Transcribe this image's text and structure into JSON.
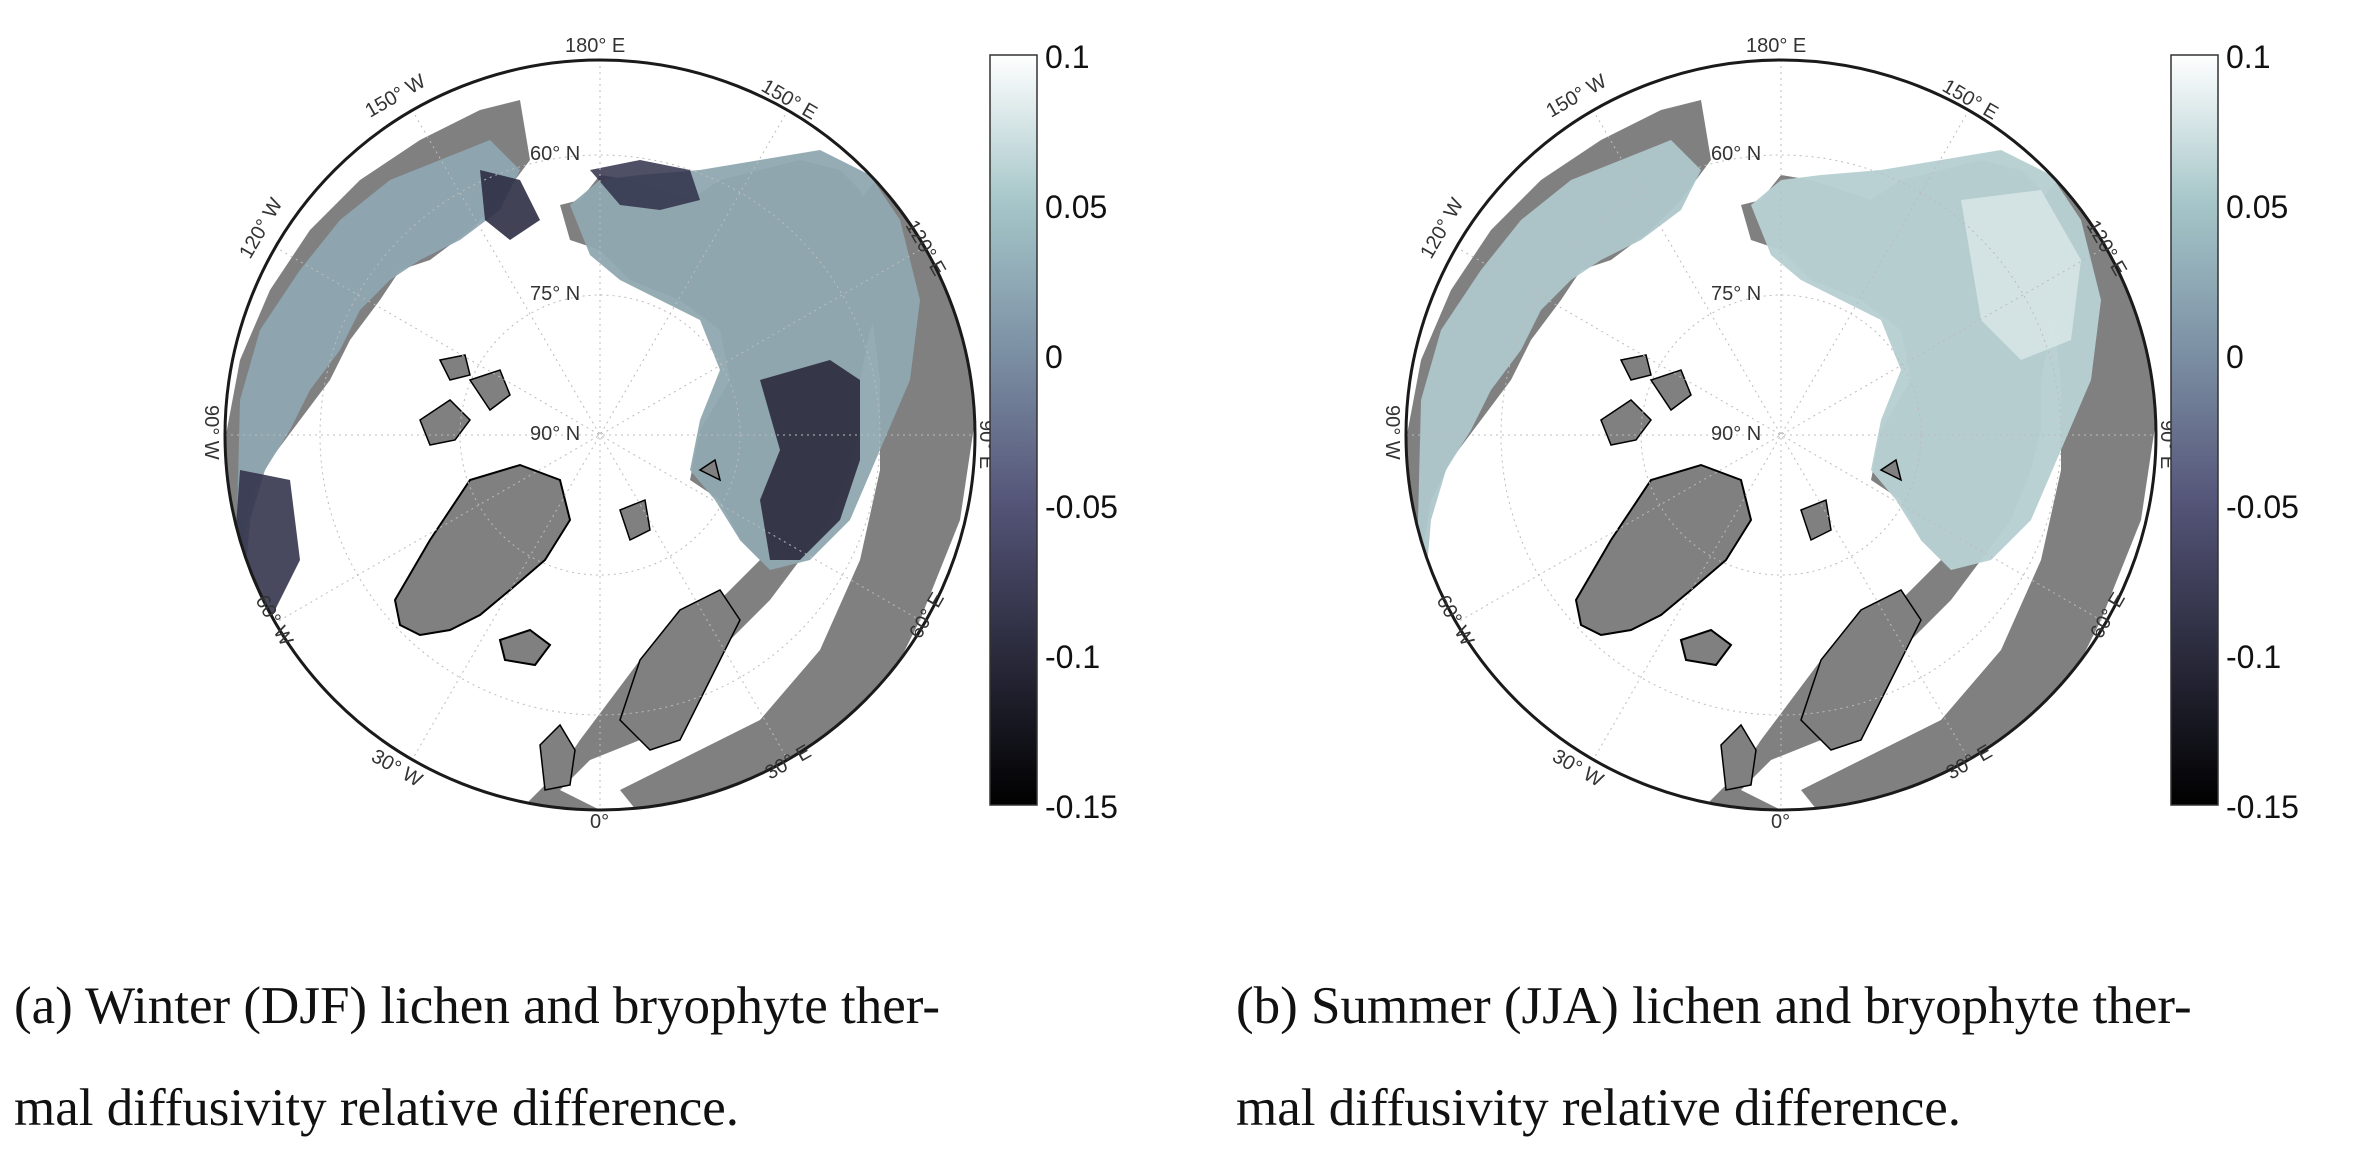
{
  "figures": [
    {
      "id": "a",
      "caption_line1": "(a) Winter (DJF) lichen and bryophyte ther-",
      "caption_line2": "mal diffusivity relative difference.",
      "tint": "winter"
    },
    {
      "id": "b",
      "caption_line1": "(b) Summer (JJA) lichen and bryophyte ther-",
      "caption_line2": "mal diffusivity relative difference.",
      "tint": "summer"
    }
  ],
  "map": {
    "projection": "north polar stereographic",
    "latitude_labels": [
      "60° N",
      "75° N",
      "90° N"
    ],
    "longitude_labels": [
      "0°",
      "30° E",
      "60° E",
      "90° E",
      "120° E",
      "150° E",
      "180° E",
      "150° W",
      "120° W",
      "90° W",
      "60° W",
      "30° W"
    ],
    "land_color": "#808080",
    "ocean_color": "#ffffff",
    "grid": true
  },
  "colorbar": {
    "ticks": [
      "0.1",
      "0.05",
      "0",
      "-0.05",
      "-0.1",
      "-0.15"
    ],
    "min": -0.15,
    "max": 0.1,
    "colormap": "bone",
    "colors": [
      "#000000",
      "#2a2a3c",
      "#545478",
      "#7b8fa3",
      "#a4c5c8",
      "#ffffff"
    ]
  }
}
